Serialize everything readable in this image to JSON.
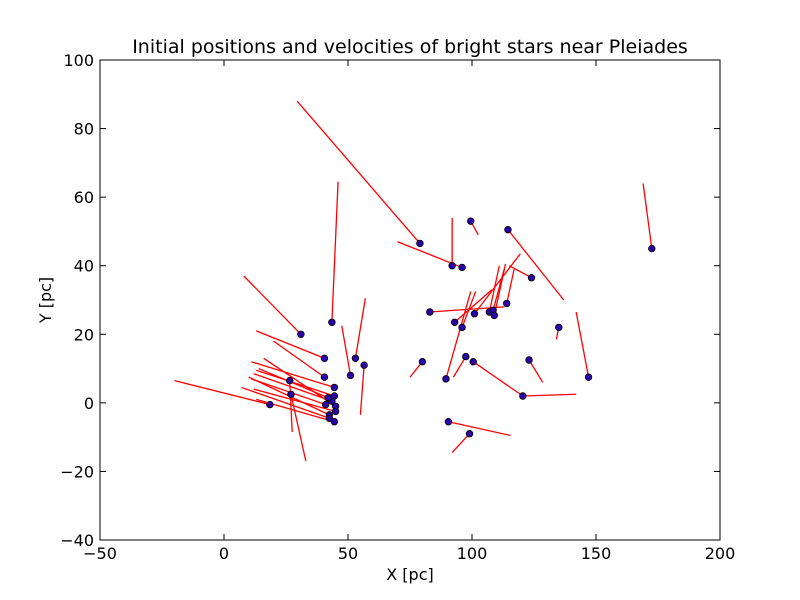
{
  "chart_data": {
    "type": "scatter",
    "title": "Initial positions and velocities of bright stars near Pleiades",
    "xlabel": "X [pc]",
    "ylabel": "Y [pc]",
    "xlim": [
      -50,
      200
    ],
    "ylim": [
      -40,
      100
    ],
    "xticks": [
      -50,
      0,
      50,
      100,
      150,
      200
    ],
    "yticks": [
      -40,
      -20,
      0,
      20,
      40,
      60,
      80,
      100
    ],
    "xtick_labels": [
      "−50",
      "0",
      "50",
      "100",
      "150",
      "200"
    ],
    "ytick_labels": [
      "−40",
      "−20",
      "0",
      "20",
      "40",
      "60",
      "80",
      "100"
    ],
    "grid": false,
    "legend": "none",
    "colors": {
      "marker_fill": "#2b00a6",
      "marker_edge": "#000000",
      "vector": "#ff0000"
    },
    "series": [
      {
        "points": [
          {
            "x": 79,
            "y": 46.5,
            "vx": 29.5,
            "vy": 88
          },
          {
            "x": 99.5,
            "y": 53,
            "vx": 102.5,
            "vy": 49
          },
          {
            "x": 92,
            "y": 40,
            "vx": 92,
            "vy": 54
          },
          {
            "x": 96,
            "y": 39.5,
            "vx": 70,
            "vy": 47
          },
          {
            "x": 114.5,
            "y": 50.5,
            "vx": 137,
            "vy": 30
          },
          {
            "x": 124,
            "y": 36.5,
            "vx": 115,
            "vy": 40
          },
          {
            "x": 172.5,
            "y": 45,
            "vx": 169,
            "vy": 64
          },
          {
            "x": 43.5,
            "y": 23.5,
            "vx": 46,
            "vy": 64.5
          },
          {
            "x": 31,
            "y": 20,
            "vx": 8,
            "vy": 37
          },
          {
            "x": 40.5,
            "y": 13,
            "vx": 13,
            "vy": 21
          },
          {
            "x": 53,
            "y": 13,
            "vx": 57,
            "vy": 30.5
          },
          {
            "x": 56.5,
            "y": 11,
            "vx": 55,
            "vy": -3.5
          },
          {
            "x": 51,
            "y": 8,
            "vx": 47.5,
            "vy": 22.5
          },
          {
            "x": 83,
            "y": 26.5,
            "vx": 113,
            "vy": 28
          },
          {
            "x": 93,
            "y": 23.5,
            "vx": 108,
            "vy": 33
          },
          {
            "x": 96,
            "y": 22,
            "vx": 101.5,
            "vy": 32.5
          },
          {
            "x": 101,
            "y": 26,
            "vx": 119.5,
            "vy": 43.5
          },
          {
            "x": 107,
            "y": 26.5,
            "vx": 111,
            "vy": 40
          },
          {
            "x": 108.5,
            "y": 27,
            "vx": 113,
            "vy": 39
          },
          {
            "x": 109,
            "y": 25.5,
            "vx": 113.5,
            "vy": 40.5
          },
          {
            "x": 114,
            "y": 29,
            "vx": 117,
            "vy": 39
          },
          {
            "x": 135,
            "y": 22,
            "vx": 134,
            "vy": 18.5
          },
          {
            "x": 80,
            "y": 12,
            "vx": 75,
            "vy": 7.5
          },
          {
            "x": 89.5,
            "y": 7,
            "vx": 99.5,
            "vy": 32.5
          },
          {
            "x": 97.5,
            "y": 13.5,
            "vx": 92.5,
            "vy": 7.5
          },
          {
            "x": 100.5,
            "y": 12,
            "vx": 120.5,
            "vy": 2
          },
          {
            "x": 123,
            "y": 12.5,
            "vx": 128.5,
            "vy": 6
          },
          {
            "x": 147,
            "y": 7.5,
            "vx": 142,
            "vy": 26.5
          },
          {
            "x": 120.5,
            "y": 2,
            "vx": 142,
            "vy": 2.5
          },
          {
            "x": 90.5,
            "y": -5.5,
            "vx": 115.5,
            "vy": -9.5
          },
          {
            "x": 99,
            "y": -9,
            "vx": 92,
            "vy": -14.5
          },
          {
            "x": 18.5,
            "y": -0.5,
            "vx": -20,
            "vy": 6.5
          },
          {
            "x": 26.5,
            "y": 6.5,
            "vx": 27.5,
            "vy": -8.5
          },
          {
            "x": 27,
            "y": 2.5,
            "vx": 33,
            "vy": -17
          },
          {
            "x": 40.5,
            "y": 7.5,
            "vx": 20,
            "vy": 18
          },
          {
            "x": 44.5,
            "y": 4.5,
            "vx": 11,
            "vy": 12
          },
          {
            "x": 44.5,
            "y": 2,
            "vx": 13,
            "vy": 9.5
          },
          {
            "x": 43.5,
            "y": 0.5,
            "vx": 12,
            "vy": 8.5
          },
          {
            "x": 42,
            "y": 1.5,
            "vx": 14,
            "vy": 10
          },
          {
            "x": 41,
            "y": -0.5,
            "vx": 11,
            "vy": 7
          },
          {
            "x": 45,
            "y": -1,
            "vx": 16,
            "vy": 13
          },
          {
            "x": 45,
            "y": -2.5,
            "vx": 12,
            "vy": 4
          },
          {
            "x": 42.5,
            "y": -3.5,
            "vx": 10,
            "vy": 7.5
          },
          {
            "x": 42.5,
            "y": -4.5,
            "vx": 7,
            "vy": 4.5
          },
          {
            "x": 44.5,
            "y": -5.5,
            "vx": 13,
            "vy": 1
          }
        ]
      }
    ]
  }
}
